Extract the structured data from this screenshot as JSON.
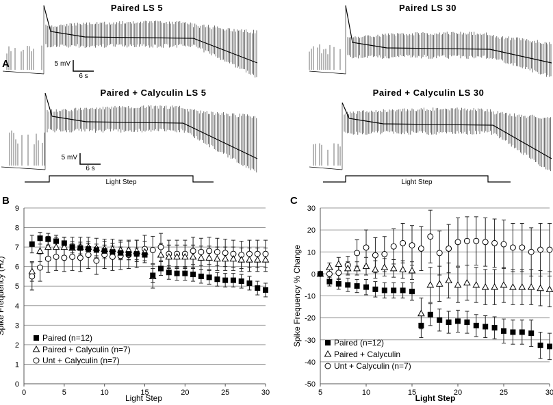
{
  "panel_labels": {
    "a": "A",
    "b": "B",
    "c": "C"
  },
  "traces": {
    "top_left_title": "Paired LS 5",
    "top_right_title": "Paired LS 30",
    "bottom_left_title": "Paired + Calyculin LS 5",
    "bottom_right_title": "Paired + Calyculin LS 30",
    "scalebar_voltage": "5 mV",
    "scalebar_time": "6 s",
    "light_step_label": "Light Step"
  },
  "chart_data": [
    {
      "type": "scatter",
      "panel": "B",
      "xlabel": "Light Step",
      "ylabel": "Spike Frequency (Hz)",
      "xlim": [
        0,
        30
      ],
      "ylim": [
        0,
        9
      ],
      "xticks": [
        0,
        5,
        10,
        15,
        20,
        25,
        30
      ],
      "yticks": [
        0,
        1,
        2,
        3,
        4,
        5,
        6,
        7,
        8,
        9
      ],
      "grid": "horizontal",
      "legend_position": "bottom-left",
      "series": [
        {
          "name": "Paired (n=12)",
          "marker": "filled-square",
          "x": [
            1,
            2,
            3,
            4,
            5,
            6,
            7,
            8,
            9,
            10,
            11,
            12,
            13,
            14,
            15,
            16,
            17,
            18,
            19,
            20,
            21,
            22,
            23,
            24,
            25,
            26,
            27,
            28,
            29,
            30
          ],
          "y": [
            7.15,
            7.45,
            7.4,
            7.3,
            7.2,
            7.0,
            6.95,
            6.9,
            6.85,
            6.8,
            6.75,
            6.7,
            6.65,
            6.65,
            6.6,
            5.55,
            5.9,
            5.7,
            5.65,
            5.65,
            5.6,
            5.5,
            5.45,
            5.35,
            5.3,
            5.3,
            5.25,
            5.15,
            4.9,
            4.8
          ],
          "err": [
            0.45,
            0.3,
            0.3,
            0.3,
            0.3,
            0.3,
            0.3,
            0.3,
            0.3,
            0.3,
            0.3,
            0.3,
            0.3,
            0.3,
            0.3,
            0.35,
            0.35,
            0.35,
            0.35,
            0.35,
            0.35,
            0.35,
            0.35,
            0.35,
            0.35,
            0.35,
            0.35,
            0.35,
            0.35,
            0.35
          ]
        },
        {
          "name": "Paired + Calyculin (n=7)",
          "marker": "open-triangle",
          "x": [
            1,
            2,
            3,
            4,
            5,
            6,
            7,
            8,
            9,
            10,
            11,
            12,
            13,
            14,
            15,
            16,
            17,
            18,
            19,
            20,
            21,
            22,
            23,
            24,
            25,
            26,
            27,
            28,
            29,
            30
          ],
          "y": [
            5.75,
            6.8,
            7.0,
            7.0,
            7.0,
            6.95,
            7.0,
            7.0,
            6.95,
            6.9,
            6.9,
            6.85,
            6.85,
            6.8,
            6.75,
            5.5,
            6.6,
            6.5,
            6.5,
            6.5,
            6.5,
            6.45,
            6.45,
            6.4,
            6.4,
            6.4,
            6.35,
            6.35,
            6.35,
            6.35
          ],
          "err": [
            0.5,
            0.55,
            0.55,
            0.5,
            0.5,
            0.55,
            0.5,
            0.5,
            0.5,
            0.5,
            0.5,
            0.5,
            0.5,
            0.55,
            0.55,
            0.6,
            0.6,
            0.6,
            0.6,
            0.6,
            0.6,
            0.6,
            0.6,
            0.6,
            0.6,
            0.6,
            0.6,
            0.6,
            0.6,
            0.6
          ]
        },
        {
          "name": "Unt + Calyculin (n=7)",
          "marker": "open-circle",
          "x": [
            1,
            2,
            3,
            4,
            5,
            6,
            7,
            8,
            9,
            10,
            11,
            12,
            13,
            14,
            15,
            16,
            17,
            18,
            19,
            20,
            21,
            22,
            23,
            24,
            25,
            26,
            27,
            28,
            29,
            30
          ],
          "y": [
            5.5,
            5.95,
            6.4,
            6.5,
            6.45,
            6.5,
            6.45,
            6.6,
            6.3,
            6.6,
            6.5,
            6.55,
            6.6,
            6.65,
            6.9,
            6.85,
            7.0,
            6.65,
            6.65,
            6.65,
            6.8,
            6.75,
            6.8,
            6.75,
            6.7,
            6.65,
            6.6,
            6.65,
            6.65,
            6.65
          ],
          "err": [
            0.7,
            0.7,
            0.7,
            0.7,
            0.7,
            0.7,
            0.7,
            0.7,
            0.7,
            0.7,
            0.7,
            0.7,
            0.7,
            0.7,
            0.7,
            0.7,
            0.7,
            0.7,
            0.7,
            0.7,
            0.7,
            0.7,
            0.7,
            0.7,
            0.7,
            0.7,
            0.7,
            0.7,
            0.7,
            0.7
          ]
        }
      ]
    },
    {
      "type": "scatter",
      "panel": "C",
      "xlabel": "Light Step",
      "ylabel": "Spike Frequency % Change",
      "xlim": [
        5,
        30
      ],
      "ylim": [
        -50,
        30
      ],
      "xticks": [
        5,
        10,
        15,
        20,
        25,
        30
      ],
      "yticks": [
        -50,
        -40,
        -30,
        -20,
        -10,
        0,
        10,
        20,
        30
      ],
      "grid": "horizontal",
      "legend_position": "bottom-left",
      "series": [
        {
          "name": "Paired (n=12)",
          "marker": "filled-square",
          "x": [
            5,
            6,
            7,
            8,
            9,
            10,
            11,
            12,
            13,
            14,
            15,
            16,
            17,
            18,
            19,
            20,
            21,
            22,
            23,
            24,
            25,
            26,
            27,
            28,
            29,
            30
          ],
          "y": [
            0,
            -3.5,
            -4.5,
            -5,
            -5.5,
            -6,
            -7,
            -7.5,
            -7.5,
            -7.5,
            -8,
            -23.5,
            -18.5,
            -21,
            -22,
            -21.5,
            -22,
            -23.5,
            -24,
            -24.5,
            -26,
            -26.5,
            -26.5,
            -27,
            -32.5,
            -33
          ],
          "err": [
            0.5,
            2,
            2.5,
            3,
            3,
            3.5,
            3.5,
            3.5,
            3.5,
            3.5,
            4,
            5.5,
            5,
            5,
            5,
            5,
            5,
            5,
            5,
            5,
            5.5,
            5.5,
            5.5,
            6,
            6,
            6
          ]
        },
        {
          "name": "Paired + Calyculin",
          "marker": "open-triangle",
          "x": [
            5,
            6,
            7,
            8,
            9,
            10,
            11,
            12,
            13,
            14,
            15,
            16,
            17,
            18,
            19,
            20,
            21,
            22,
            23,
            24,
            25,
            26,
            27,
            28,
            29,
            30
          ],
          "y": [
            0,
            3,
            4.5,
            2.5,
            2.5,
            3.5,
            2,
            3,
            2.5,
            2,
            1.5,
            -18,
            -5,
            -4.5,
            -3,
            -5,
            -4,
            -5,
            -6,
            -6,
            -5,
            -6,
            -6,
            -6,
            -6.5,
            -7
          ],
          "err": [
            0.5,
            2,
            3,
            3,
            3,
            4,
            4,
            4,
            4,
            4,
            4,
            7,
            8,
            8,
            8,
            8,
            8,
            8,
            8,
            8,
            8,
            8,
            8,
            8,
            8,
            8
          ]
        },
        {
          "name": "Unt + Calyculin (n=7)",
          "marker": "open-circle",
          "x": [
            5,
            6,
            7,
            8,
            9,
            10,
            11,
            12,
            13,
            14,
            15,
            16,
            17,
            18,
            19,
            20,
            21,
            22,
            23,
            24,
            25,
            26,
            27,
            28,
            29,
            30
          ],
          "y": [
            0,
            0,
            0.5,
            4,
            9.5,
            12,
            8.5,
            9,
            12.5,
            14,
            13,
            11.5,
            17,
            9.5,
            11.5,
            14.5,
            15,
            15,
            14.5,
            14,
            13.5,
            12,
            12,
            10,
            11,
            11
          ],
          "err": [
            0.5,
            3,
            3,
            4,
            6,
            8,
            8,
            8,
            8,
            9,
            9,
            10,
            12,
            10,
            11,
            11,
            11,
            11,
            11,
            11,
            11,
            11,
            11,
            11,
            12,
            12
          ]
        }
      ]
    }
  ]
}
